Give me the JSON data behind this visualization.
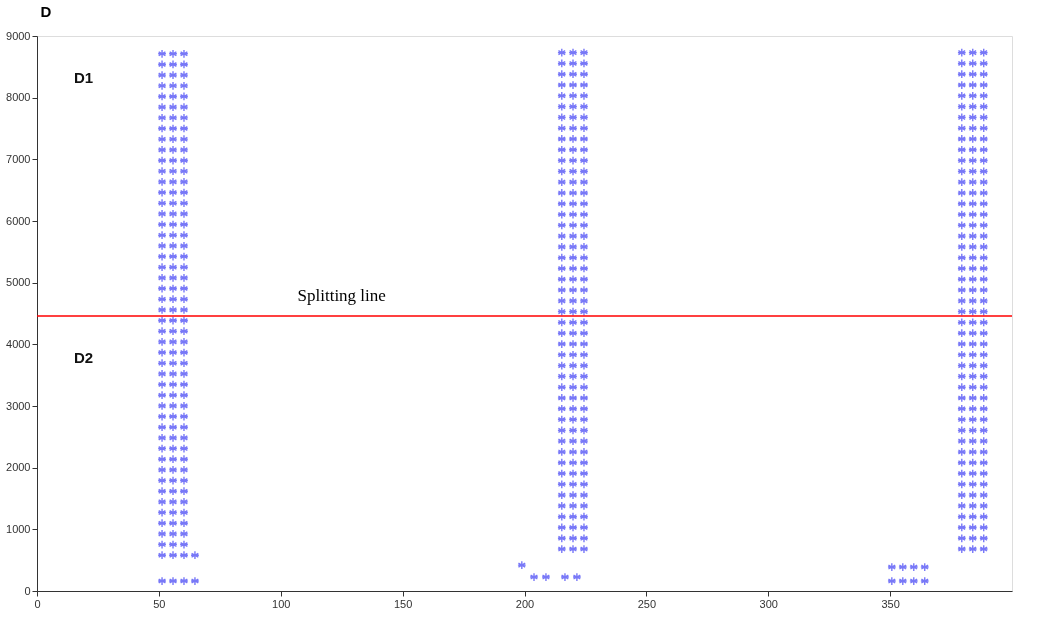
{
  "chart_data": {
    "type": "scatter",
    "title": "D",
    "xlim": [
      0,
      400
    ],
    "xticks": [
      0,
      50,
      100,
      150,
      200,
      250,
      300,
      350
    ],
    "ylim": [
      0,
      9000
    ],
    "yticks": [
      0,
      1000,
      2000,
      3000,
      4000,
      5000,
      6000,
      7000,
      8000,
      9000
    ],
    "grid": false,
    "legend": false,
    "marker": "cross",
    "ref_lines": [
      {
        "axis": "y",
        "value": 4460,
        "label": "Splitting line",
        "color": "#ff0000"
      }
    ],
    "annotations": [
      "D1",
      "D2"
    ],
    "series": [
      {
        "color": "#3f3ff5",
        "x": [
          51.3,
          51.3,
          51.3,
          51.3,
          51.3,
          51.3,
          51.3,
          51.3,
          51.3,
          51.3,
          51.3,
          51.3,
          51.3,
          51.3,
          51.3,
          51.3,
          51.3,
          51.3,
          51.3,
          51.3,
          51.3,
          51.3,
          51.3,
          51.3,
          51.3,
          51.3,
          51.3,
          51.3,
          51.3,
          51.3,
          51.3,
          51.3,
          51.3,
          51.3,
          51.3,
          51.3,
          51.3,
          51.3,
          51.3,
          51.3,
          51.3,
          51.3,
          51.3,
          51.3,
          51.3,
          51.3,
          51.3,
          51.3
        ],
        "values": [
          580,
          753,
          926,
          1099,
          1272,
          1445,
          1618,
          1791,
          1964,
          2137,
          2310,
          2483,
          2656,
          2829,
          3002,
          3175,
          3348,
          3521,
          3694,
          3867,
          4040,
          4213,
          4386,
          4559,
          4732,
          4905,
          5078,
          5251,
          5424,
          5597,
          5770,
          5943,
          6116,
          6289,
          6462,
          6635,
          6808,
          6981,
          7154,
          7327,
          7500,
          7673,
          7846,
          8019,
          8192,
          8365,
          8538,
          8711
        ]
      },
      {
        "color": "#3f3ff5",
        "x": [
          55.8,
          55.8,
          55.8,
          55.8,
          55.8,
          55.8,
          55.8,
          55.8,
          55.8,
          55.8,
          55.8,
          55.8,
          55.8,
          55.8,
          55.8,
          55.8,
          55.8,
          55.8,
          55.8,
          55.8,
          55.8,
          55.8,
          55.8,
          55.8,
          55.8,
          55.8,
          55.8,
          55.8,
          55.8,
          55.8,
          55.8,
          55.8,
          55.8,
          55.8,
          55.8,
          55.8,
          55.8,
          55.8,
          55.8,
          55.8,
          55.8,
          55.8,
          55.8,
          55.8,
          55.8,
          55.8,
          55.8,
          55.8
        ],
        "values": [
          580,
          753,
          926,
          1099,
          1272,
          1445,
          1618,
          1791,
          1964,
          2137,
          2310,
          2483,
          2656,
          2829,
          3002,
          3175,
          3348,
          3521,
          3694,
          3867,
          4040,
          4213,
          4386,
          4559,
          4732,
          4905,
          5078,
          5251,
          5424,
          5597,
          5770,
          5943,
          6116,
          6289,
          6462,
          6635,
          6808,
          6981,
          7154,
          7327,
          7500,
          7673,
          7846,
          8019,
          8192,
          8365,
          8538,
          8711
        ]
      },
      {
        "color": "#3f3ff5",
        "x": [
          60.3,
          60.3,
          60.3,
          60.3,
          60.3,
          60.3,
          60.3,
          60.3,
          60.3,
          60.3,
          60.3,
          60.3,
          60.3,
          60.3,
          60.3,
          60.3,
          60.3,
          60.3,
          60.3,
          60.3,
          60.3,
          60.3,
          60.3,
          60.3,
          60.3,
          60.3,
          60.3,
          60.3,
          60.3,
          60.3,
          60.3,
          60.3,
          60.3,
          60.3,
          60.3,
          60.3,
          60.3,
          60.3,
          60.3,
          60.3,
          60.3,
          60.3,
          60.3,
          60.3,
          60.3,
          60.3,
          60.3,
          60.3
        ],
        "values": [
          580,
          753,
          926,
          1099,
          1272,
          1445,
          1618,
          1791,
          1964,
          2137,
          2310,
          2483,
          2656,
          2829,
          3002,
          3175,
          3348,
          3521,
          3694,
          3867,
          4040,
          4213,
          4386,
          4559,
          4732,
          4905,
          5078,
          5251,
          5424,
          5597,
          5770,
          5943,
          6116,
          6289,
          6462,
          6635,
          6808,
          6981,
          7154,
          7327,
          7500,
          7673,
          7846,
          8019,
          8192,
          8365,
          8538,
          8711
        ]
      },
      {
        "color": "#3f3ff5",
        "x": [
          64.8,
          51.3,
          55.8,
          60.3,
          64.8
        ],
        "values": [
          580,
          162,
          162,
          162,
          162
        ]
      },
      {
        "color": "#3f3ff5",
        "x": [
          215.3,
          215.3,
          215.3,
          215.3,
          215.3,
          215.3,
          215.3,
          215.3,
          215.3,
          215.3,
          215.3,
          215.3,
          215.3,
          215.3,
          215.3,
          215.3,
          215.3,
          215.3,
          215.3,
          215.3,
          215.3,
          215.3,
          215.3,
          215.3,
          215.3,
          215.3,
          215.3,
          215.3,
          215.3,
          215.3,
          215.3,
          215.3,
          215.3,
          215.3,
          215.3,
          215.3,
          215.3,
          215.3,
          215.3,
          215.3,
          215.3,
          215.3,
          215.3,
          215.3,
          215.3,
          215.3,
          215.3
        ],
        "values": [
          680,
          855,
          1030,
          1205,
          1380,
          1555,
          1730,
          1905,
          2080,
          2255,
          2430,
          2605,
          2780,
          2955,
          3130,
          3305,
          3480,
          3655,
          3830,
          4005,
          4180,
          4355,
          4530,
          4705,
          4880,
          5055,
          5230,
          5405,
          5580,
          5755,
          5930,
          6105,
          6280,
          6455,
          6630,
          6805,
          6980,
          7155,
          7330,
          7505,
          7680,
          7855,
          8030,
          8205,
          8380,
          8555,
          8730
        ]
      },
      {
        "color": "#3f3ff5",
        "x": [
          219.9,
          219.9,
          219.9,
          219.9,
          219.9,
          219.9,
          219.9,
          219.9,
          219.9,
          219.9,
          219.9,
          219.9,
          219.9,
          219.9,
          219.9,
          219.9,
          219.9,
          219.9,
          219.9,
          219.9,
          219.9,
          219.9,
          219.9,
          219.9,
          219.9,
          219.9,
          219.9,
          219.9,
          219.9,
          219.9,
          219.9,
          219.9,
          219.9,
          219.9,
          219.9,
          219.9,
          219.9,
          219.9,
          219.9,
          219.9,
          219.9,
          219.9,
          219.9,
          219.9,
          219.9,
          219.9,
          219.9
        ],
        "values": [
          680,
          855,
          1030,
          1205,
          1380,
          1555,
          1730,
          1905,
          2080,
          2255,
          2430,
          2605,
          2780,
          2955,
          3130,
          3305,
          3480,
          3655,
          3830,
          4005,
          4180,
          4355,
          4530,
          4705,
          4880,
          5055,
          5230,
          5405,
          5580,
          5755,
          5930,
          6105,
          6280,
          6455,
          6630,
          6805,
          6980,
          7155,
          7330,
          7505,
          7680,
          7855,
          8030,
          8205,
          8380,
          8555,
          8730
        ]
      },
      {
        "color": "#3f3ff5",
        "x": [
          224.4,
          224.4,
          224.4,
          224.4,
          224.4,
          224.4,
          224.4,
          224.4,
          224.4,
          224.4,
          224.4,
          224.4,
          224.4,
          224.4,
          224.4,
          224.4,
          224.4,
          224.4,
          224.4,
          224.4,
          224.4,
          224.4,
          224.4,
          224.4,
          224.4,
          224.4,
          224.4,
          224.4,
          224.4,
          224.4,
          224.4,
          224.4,
          224.4,
          224.4,
          224.4,
          224.4,
          224.4,
          224.4,
          224.4,
          224.4,
          224.4,
          224.4,
          224.4,
          224.4,
          224.4,
          224.4,
          224.4
        ],
        "values": [
          680,
          855,
          1030,
          1205,
          1380,
          1555,
          1730,
          1905,
          2080,
          2255,
          2430,
          2605,
          2780,
          2955,
          3130,
          3305,
          3480,
          3655,
          3830,
          4005,
          4180,
          4355,
          4530,
          4705,
          4880,
          5055,
          5230,
          5405,
          5580,
          5755,
          5930,
          6105,
          6280,
          6455,
          6630,
          6805,
          6980,
          7155,
          7330,
          7505,
          7680,
          7855,
          8030,
          8205,
          8380,
          8555,
          8730
        ]
      },
      {
        "color": "#3f3ff5",
        "x": [
          198.9,
          203.9,
          208.8,
          216.6,
          221.5
        ],
        "values": [
          420,
          226,
          226,
          226,
          226
        ]
      },
      {
        "color": "#3f3ff5",
        "x": [
          379.4,
          379.4,
          379.4,
          379.4,
          379.4,
          379.4,
          379.4,
          379.4,
          379.4,
          379.4,
          379.4,
          379.4,
          379.4,
          379.4,
          379.4,
          379.4,
          379.4,
          379.4,
          379.4,
          379.4,
          379.4,
          379.4,
          379.4,
          379.4,
          379.4,
          379.4,
          379.4,
          379.4,
          379.4,
          379.4,
          379.4,
          379.4,
          379.4,
          379.4,
          379.4,
          379.4,
          379.4,
          379.4,
          379.4,
          379.4,
          379.4,
          379.4,
          379.4,
          379.4,
          379.4,
          379.4,
          379.4
        ],
        "values": [
          680,
          855,
          1030,
          1205,
          1380,
          1555,
          1730,
          1905,
          2080,
          2255,
          2430,
          2605,
          2780,
          2955,
          3130,
          3305,
          3480,
          3655,
          3830,
          4005,
          4180,
          4355,
          4530,
          4705,
          4880,
          5055,
          5230,
          5405,
          5580,
          5755,
          5930,
          6105,
          6280,
          6455,
          6630,
          6805,
          6980,
          7155,
          7330,
          7505,
          7680,
          7855,
          8030,
          8205,
          8380,
          8555,
          8730
        ]
      },
      {
        "color": "#3f3ff5",
        "x": [
          383.9,
          383.9,
          383.9,
          383.9,
          383.9,
          383.9,
          383.9,
          383.9,
          383.9,
          383.9,
          383.9,
          383.9,
          383.9,
          383.9,
          383.9,
          383.9,
          383.9,
          383.9,
          383.9,
          383.9,
          383.9,
          383.9,
          383.9,
          383.9,
          383.9,
          383.9,
          383.9,
          383.9,
          383.9,
          383.9,
          383.9,
          383.9,
          383.9,
          383.9,
          383.9,
          383.9,
          383.9,
          383.9,
          383.9,
          383.9,
          383.9,
          383.9,
          383.9,
          383.9,
          383.9,
          383.9,
          383.9
        ],
        "values": [
          680,
          855,
          1030,
          1205,
          1380,
          1555,
          1730,
          1905,
          2080,
          2255,
          2430,
          2605,
          2780,
          2955,
          3130,
          3305,
          3480,
          3655,
          3830,
          4005,
          4180,
          4355,
          4530,
          4705,
          4880,
          5055,
          5230,
          5405,
          5580,
          5755,
          5930,
          6105,
          6280,
          6455,
          6630,
          6805,
          6980,
          7155,
          7330,
          7505,
          7680,
          7855,
          8030,
          8205,
          8380,
          8555,
          8730
        ]
      },
      {
        "color": "#3f3ff5",
        "x": [
          388.4,
          388.4,
          388.4,
          388.4,
          388.4,
          388.4,
          388.4,
          388.4,
          388.4,
          388.4,
          388.4,
          388.4,
          388.4,
          388.4,
          388.4,
          388.4,
          388.4,
          388.4,
          388.4,
          388.4,
          388.4,
          388.4,
          388.4,
          388.4,
          388.4,
          388.4,
          388.4,
          388.4,
          388.4,
          388.4,
          388.4,
          388.4,
          388.4,
          388.4,
          388.4,
          388.4,
          388.4,
          388.4,
          388.4,
          388.4,
          388.4,
          388.4,
          388.4,
          388.4,
          388.4,
          388.4,
          388.4
        ],
        "values": [
          680,
          855,
          1030,
          1205,
          1380,
          1555,
          1730,
          1905,
          2080,
          2255,
          2430,
          2605,
          2780,
          2955,
          3130,
          3305,
          3480,
          3655,
          3830,
          4005,
          4180,
          4355,
          4530,
          4705,
          4880,
          5055,
          5230,
          5405,
          5580,
          5755,
          5930,
          6105,
          6280,
          6455,
          6630,
          6805,
          6980,
          7155,
          7330,
          7505,
          7680,
          7855,
          8030,
          8205,
          8380,
          8555,
          8730
        ]
      },
      {
        "color": "#3f3ff5",
        "x": [
          350.7,
          355.2,
          359.7,
          364.2,
          350.7,
          355.2,
          359.7,
          364.2
        ],
        "values": [
          388,
          388,
          388,
          388,
          161,
          161,
          161,
          161
        ]
      }
    ]
  }
}
